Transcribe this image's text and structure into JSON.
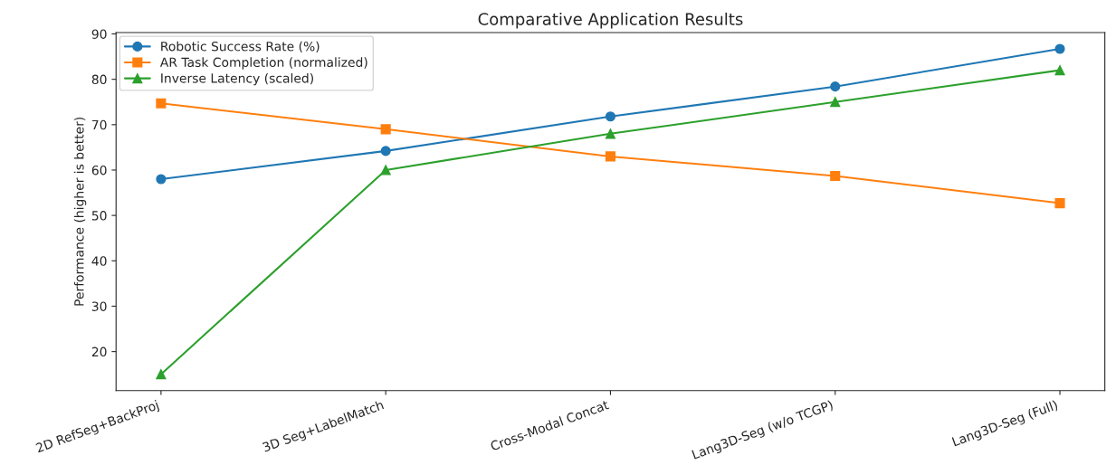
{
  "chart_data": {
    "type": "line",
    "title": "Comparative Application Results",
    "ylabel": "Performance (higher is better)",
    "categories": [
      "2D RefSeg+BackProj",
      "3D Seg+LabelMatch",
      "Cross-Modal Concat",
      "Lang3D-Seg (w/o TCGP)",
      "Lang3D-Seg (Full)"
    ],
    "series": [
      {
        "name": "Robotic Success Rate (%)",
        "color": "#1f77b4",
        "marker": "circle",
        "values": [
          58,
          64.2,
          71.8,
          78.4,
          86.7
        ]
      },
      {
        "name": "AR Task Completion (normalized)",
        "color": "#ff7f0e",
        "marker": "square",
        "values": [
          74.7,
          69,
          63,
          58.7,
          52.7
        ]
      },
      {
        "name": "Inverse Latency (scaled)",
        "color": "#2ca02c",
        "marker": "triangle",
        "values": [
          15,
          60,
          68,
          75,
          82
        ]
      }
    ],
    "ylim": [
      11.4,
      90.3
    ],
    "yticks": [
      20,
      30,
      40,
      50,
      60,
      70,
      80,
      90
    ],
    "grid": false,
    "legend": "top left",
    "line_style": "solid"
  }
}
